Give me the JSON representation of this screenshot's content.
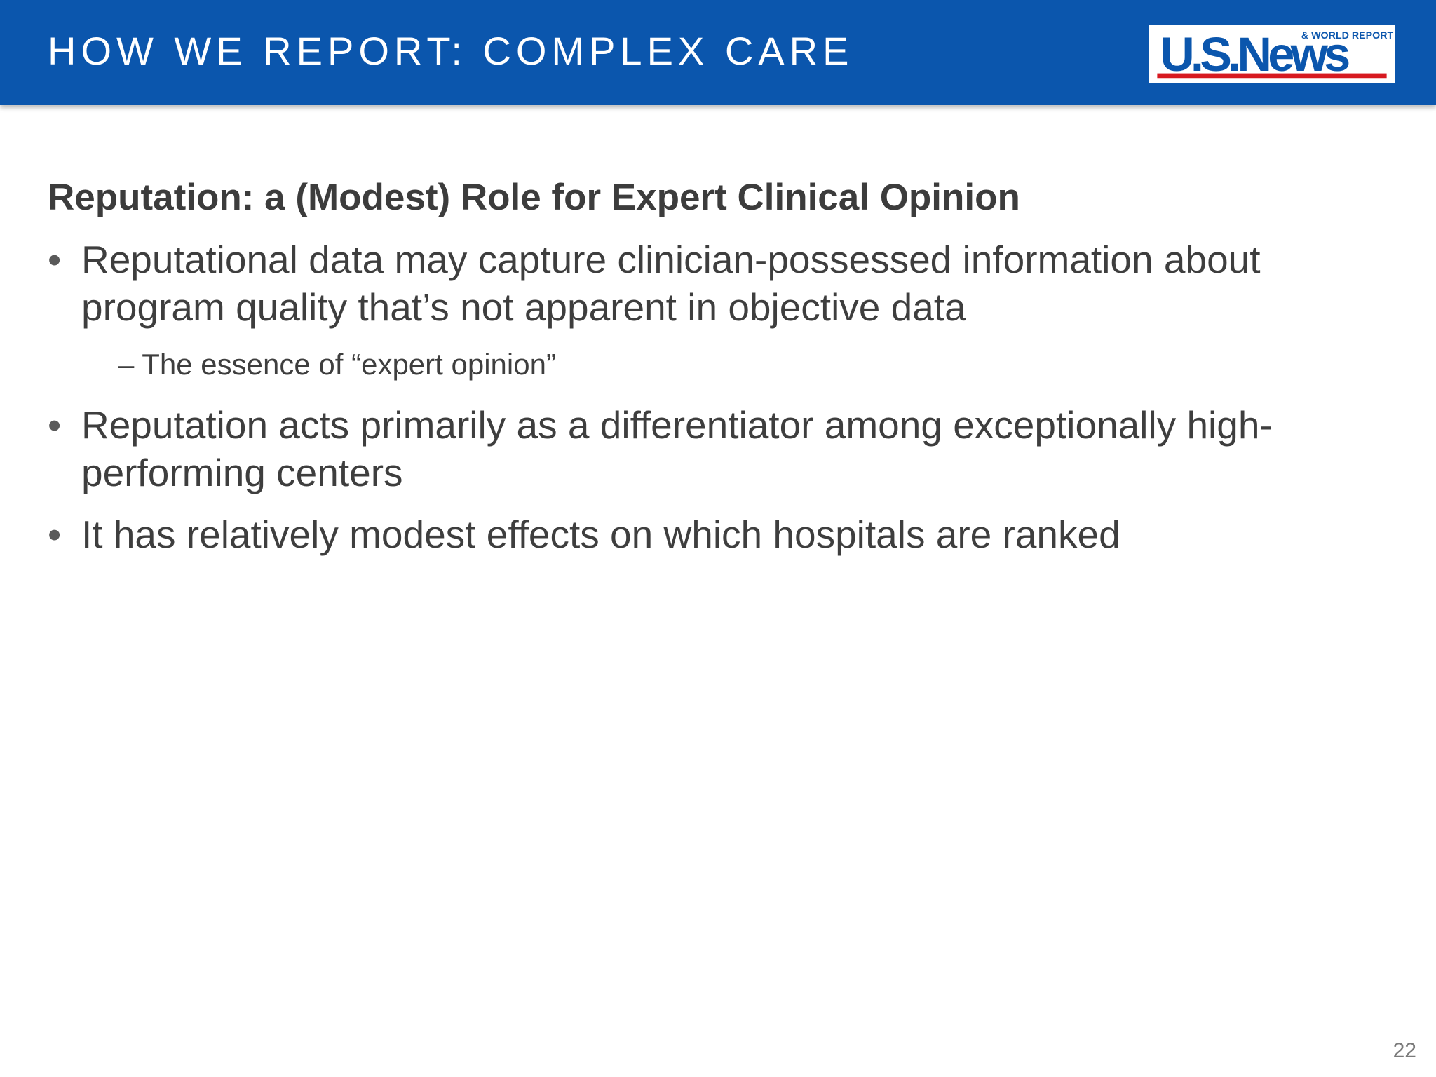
{
  "header": {
    "title": "HOW WE REPORT: COMPLEX CARE",
    "background_color": "#0b56ad",
    "logo": {
      "name": "us-news-logo",
      "main_text": "U.S.News",
      "tagline": "& WORLD REPORT",
      "text_color": "#0b56ad",
      "underline_color": "#d71920"
    }
  },
  "content": {
    "subtitle": "Reputation: a (Modest) Role for Expert Clinical Opinion",
    "bullets": [
      {
        "marker": "•",
        "text": "Reputational data may capture clinician-possessed information about program quality that’s not apparent in objective data",
        "sub": "– The essence of “expert opinion”"
      },
      {
        "marker": "•",
        "text": "Reputation acts primarily as a differentiator among exceptionally high-performing centers"
      },
      {
        "marker": "•",
        "text": "It has relatively modest effects on which hospitals are ranked"
      }
    ]
  },
  "footer": {
    "page_number": "22"
  }
}
